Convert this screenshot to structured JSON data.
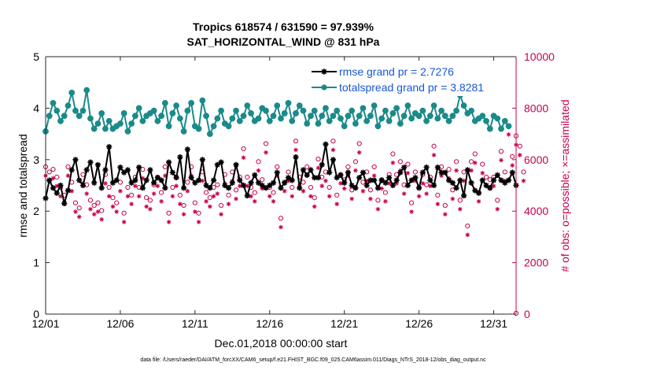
{
  "chart_data": {
    "type": "line",
    "title": "Tropics 618574 / 631590 = 97.939%",
    "subtitle": "SAT_HORIZONTAL_WIND @ 831 hPa",
    "xlabel": "Dec.01,2018 00:00:00 start",
    "ylabel_left": "rmse and totalspread",
    "ylabel_right": "# of obs: o=possible; ×=assimilated",
    "footnote": "data file: /Users/raeder/DAI/ATM_forcXX/CAM6_setup/f.e21.FHIST_BGC.f09_025.CAM6assim.011/Diags_NTrS_2018-12/obs_diag_output.nc",
    "xlim": [
      0,
      31.5
    ],
    "ylim_left": [
      0,
      5
    ],
    "ylim_right": [
      0,
      10000
    ],
    "x_ticks": [
      0,
      5,
      10,
      15,
      20,
      25,
      30
    ],
    "x_tick_labels": [
      "12/01",
      "12/06",
      "12/11",
      "12/16",
      "12/21",
      "12/26",
      "12/31"
    ],
    "y_left_ticks": [
      "0",
      "1",
      "2",
      "3",
      "4",
      "5"
    ],
    "y_right_ticks": [
      "0",
      "2000",
      "4000",
      "6000",
      "8000",
      "10000"
    ],
    "x_step_days": 0.25,
    "series": [
      {
        "name": "rmse grand pr = 2.7276",
        "axis": "left",
        "color": "#000000",
        "marker": "asterisk",
        "values": [
          2.25,
          2.6,
          2.45,
          2.35,
          2.5,
          2.15,
          2.4,
          2.8,
          3.0,
          2.6,
          2.5,
          2.8,
          2.95,
          2.55,
          2.9,
          2.45,
          2.8,
          3.25,
          2.55,
          2.6,
          2.85,
          2.75,
          2.8,
          2.55,
          2.6,
          2.85,
          2.45,
          2.6,
          2.8,
          2.55,
          2.65,
          2.6,
          2.45,
          2.95,
          2.75,
          2.65,
          3.05,
          2.45,
          3.2,
          2.65,
          2.55,
          2.6,
          3.0,
          2.5,
          2.45,
          2.6,
          2.9,
          2.95,
          2.5,
          2.45,
          2.55,
          2.9,
          2.6,
          2.5,
          2.3,
          2.55,
          2.7,
          2.55,
          2.5,
          2.45,
          2.5,
          2.55,
          2.75,
          2.45,
          2.55,
          2.65,
          2.6,
          3.05,
          2.45,
          2.8,
          2.7,
          2.8,
          2.65,
          2.65,
          2.9,
          3.3,
          2.75,
          3.0,
          2.65,
          2.7,
          2.55,
          2.75,
          2.5,
          2.45,
          2.65,
          2.75,
          2.5,
          2.6,
          2.6,
          2.45,
          2.6,
          2.55,
          2.65,
          2.5,
          2.6,
          2.75,
          2.85,
          2.5,
          2.6,
          2.65,
          2.45,
          2.75,
          2.85,
          2.6,
          2.5,
          2.85,
          2.75,
          2.75,
          2.6,
          2.55,
          2.45,
          2.6,
          2.3,
          2.8,
          2.55,
          2.4,
          2.35,
          2.6,
          2.5,
          2.45,
          2.6,
          2.7,
          2.6,
          2.55,
          2.6,
          2.75,
          2.5
        ]
      },
      {
        "name": "totalspread grand pr = 3.8281",
        "axis": "left",
        "color": "#1a8a8a",
        "marker": "circle",
        "values": [
          3.55,
          3.85,
          4.1,
          3.95,
          3.75,
          3.85,
          4.05,
          4.3,
          3.95,
          3.85,
          3.95,
          4.35,
          3.8,
          3.6,
          3.7,
          3.9,
          3.6,
          3.75,
          3.6,
          3.65,
          3.7,
          3.9,
          3.55,
          3.7,
          3.85,
          4.0,
          3.75,
          3.85,
          3.9,
          3.95,
          3.75,
          3.85,
          4.1,
          3.65,
          3.9,
          4.05,
          3.8,
          3.55,
          3.95,
          4.1,
          3.65,
          3.6,
          4.15,
          3.85,
          3.5,
          3.65,
          3.8,
          3.95,
          3.7,
          3.65,
          3.8,
          3.95,
          3.75,
          3.85,
          4.05,
          3.9,
          3.75,
          3.8,
          4.0,
          3.95,
          3.75,
          3.85,
          4.05,
          3.8,
          3.9,
          4.1,
          3.75,
          3.9,
          4.05,
          3.95,
          3.7,
          3.85,
          3.95,
          3.7,
          3.85,
          4.0,
          3.75,
          3.85,
          3.95,
          3.8,
          3.65,
          3.85,
          3.95,
          3.7,
          3.85,
          4.0,
          3.75,
          3.85,
          4.05,
          3.65,
          3.8,
          3.95,
          3.75,
          3.9,
          4.0,
          3.7,
          3.85,
          4.05,
          3.8,
          3.9,
          3.85,
          3.95,
          3.75,
          3.85,
          4.05,
          3.8,
          3.95,
          3.85,
          3.75,
          3.85,
          3.95,
          4.25,
          4.05,
          3.9,
          3.95,
          3.75,
          3.8,
          3.85,
          3.75,
          3.6,
          3.85,
          3.8,
          3.6,
          3.75,
          3.65
        ]
      },
      {
        "name": "possible",
        "axis": "right",
        "color": "#c8004f",
        "marker": "o",
        "values": [
          5600,
          5400,
          5500,
          5200,
          4800,
          4500,
          5600,
          5000,
          4200,
          4000,
          5300,
          4900,
          4300,
          4100,
          4200,
          3900,
          5300,
          4800,
          4400,
          4200,
          5000,
          3800,
          4800,
          4500,
          5200,
          4800,
          5500,
          4400,
          4300,
          4900,
          5200,
          4600,
          5600,
          3800,
          4800,
          5200,
          4500,
          4100,
          5000,
          5600,
          4200,
          3800,
          5400,
          4600,
          4400,
          4800,
          4900,
          4100,
          5300,
          4500,
          5400,
          4700,
          5200,
          6300,
          5200,
          4800,
          4600,
          5800,
          5100,
          6500,
          4800,
          4600,
          5600,
          3600,
          5000,
          5400,
          4800,
          6600,
          5200,
          5000,
          5600,
          4800,
          4400,
          5900,
          5200,
          5400,
          4800,
          6600,
          4500,
          5300,
          5100,
          5600,
          4700,
          5800,
          6500,
          5000,
          5400,
          4700,
          5600,
          4300,
          5100,
          4600,
          5300,
          6100,
          5300,
          5800,
          4900,
          5700,
          4200,
          5400,
          4800,
          5300,
          4900,
          5200,
          6400,
          4500,
          5600,
          4100,
          5500,
          4700,
          5800,
          4300,
          5400,
          3300,
          5800,
          6100,
          4600,
          5700,
          5200,
          5100,
          5200,
          4300,
          6200,
          5400,
          7200,
          6000,
          6800,
          6400,
          5400
        ]
      },
      {
        "name": "assimilated",
        "axis": "right",
        "color": "#c8004f",
        "marker": "asterisk",
        "values": [
          5500,
          5300,
          5400,
          5100,
          4700,
          4400,
          5500,
          4900,
          4100,
          3900,
          5200,
          4800,
          4200,
          4000,
          4100,
          3800,
          5200,
          4700,
          4300,
          4100,
          4900,
          3700,
          4700,
          4400,
          5100,
          4700,
          5400,
          4300,
          4200,
          4800,
          5100,
          4500,
          5500,
          3700,
          4700,
          5100,
          4400,
          4000,
          4900,
          5500,
          4100,
          3700,
          5300,
          4500,
          4300,
          4700,
          4800,
          4000,
          5200,
          4400,
          5300,
          4600,
          5100,
          6200,
          5100,
          4700,
          4500,
          5700,
          5000,
          6400,
          4700,
          4500,
          5500,
          3500,
          4900,
          5300,
          4700,
          6500,
          5100,
          4900,
          5500,
          4700,
          4300,
          5800,
          5100,
          5300,
          4700,
          6500,
          4400,
          5200,
          5000,
          5500,
          4600,
          5700,
          6400,
          4900,
          5300,
          4600,
          5500,
          4200,
          5000,
          4500,
          5200,
          6000,
          5200,
          5700,
          4800,
          5600,
          4100,
          5300,
          4700,
          5200,
          4800,
          5100,
          6300,
          4400,
          5500,
          4000,
          5400,
          4600,
          5700,
          4200,
          5300,
          3200,
          5700,
          6000,
          4500,
          5600,
          5100,
          5000,
          5100,
          4200,
          6100,
          5300,
          7100,
          5900,
          6700,
          6300,
          5300
        ]
      }
    ],
    "legend_position": "top-right"
  }
}
